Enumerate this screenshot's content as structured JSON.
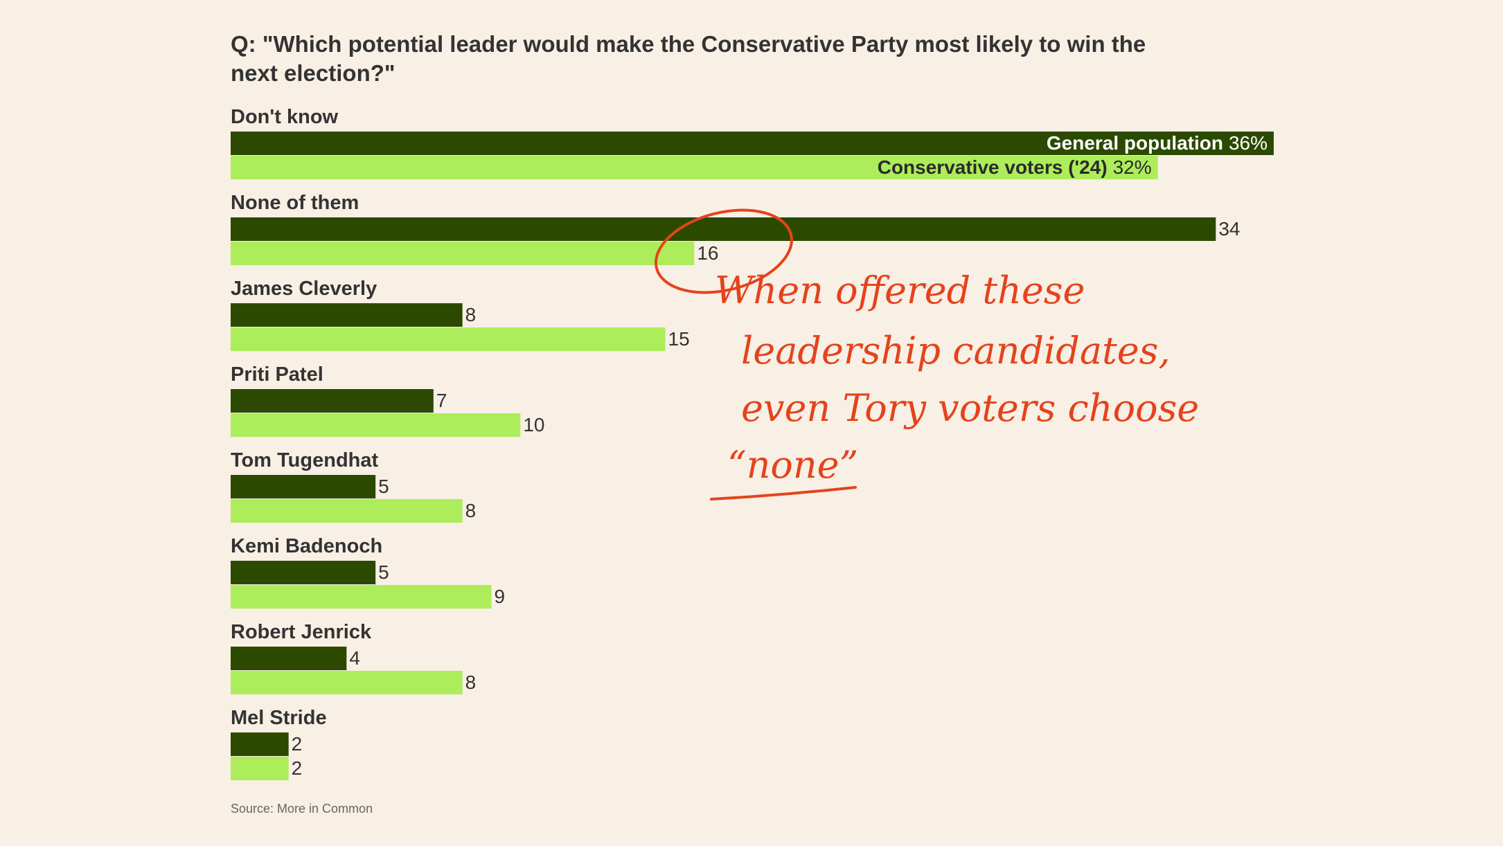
{
  "chart_data": {
    "type": "bar",
    "orientation": "horizontal",
    "title": "Q: \"Which potential leader would make the Conservative Party most likely to win the next election?\"",
    "title_lines": [
      "Q: \"Which potential leader would make the Conservative Party most likely to win the",
      "next election?\""
    ],
    "categories": [
      "Don't know",
      "None of them",
      "James Cleverly",
      "Priti Patel",
      "Tom Tugendhat",
      "Kemi Badenoch",
      "Robert Jenrick",
      "Mel Stride"
    ],
    "series": [
      {
        "name": "General population",
        "color": "#2b4a00",
        "values": [
          36,
          34,
          8,
          7,
          5,
          5,
          4,
          2
        ]
      },
      {
        "name": "Conservative voters ('24)",
        "color": "#adec5a",
        "values": [
          32,
          16,
          15,
          10,
          8,
          9,
          8,
          2
        ]
      }
    ],
    "value_labels_first_row": [
      "36%",
      "32%"
    ],
    "xlim": [
      0,
      36
    ],
    "grid": false,
    "legend": "inline in first category bars",
    "source": "Source: More in Common",
    "annotation": {
      "lines": [
        "When offered these",
        "leadership candidates,",
        "even Tory voters choose",
        "“none”"
      ],
      "color": "#e4431c",
      "circled": "None of them — Conservative voters (16)"
    }
  }
}
